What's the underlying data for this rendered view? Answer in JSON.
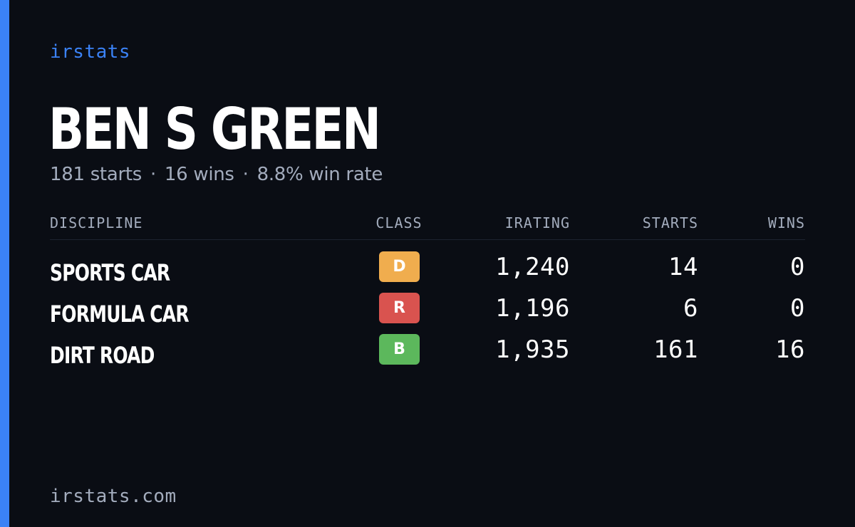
{
  "brand": "irstats",
  "driver": {
    "name": "BEN S GREEN"
  },
  "summary": {
    "starts": "181 starts",
    "wins": "16 wins",
    "win_rate": "8.8% win rate",
    "separator": "·"
  },
  "table": {
    "headers": {
      "discipline": "DISCIPLINE",
      "class": "CLASS",
      "irating": "IRATING",
      "starts": "STARTS",
      "wins": "WINS"
    },
    "rows": [
      {
        "discipline": "SPORTS CAR",
        "class": "D",
        "class_color": "#f0ad4e",
        "irating": "1,240",
        "starts": "14",
        "wins": "0"
      },
      {
        "discipline": "FORMULA CAR",
        "class": "R",
        "class_color": "#d9534f",
        "irating": "1,196",
        "starts": "6",
        "wins": "0"
      },
      {
        "discipline": "DIRT ROAD",
        "class": "B",
        "class_color": "#5cb85c",
        "irating": "1,935",
        "starts": "161",
        "wins": "16"
      }
    ]
  },
  "footer": {
    "url": "irstats.com"
  },
  "colors": {
    "background": "#0a0d14",
    "accent": "#3b82f6",
    "muted_text": "#a3acbd"
  }
}
